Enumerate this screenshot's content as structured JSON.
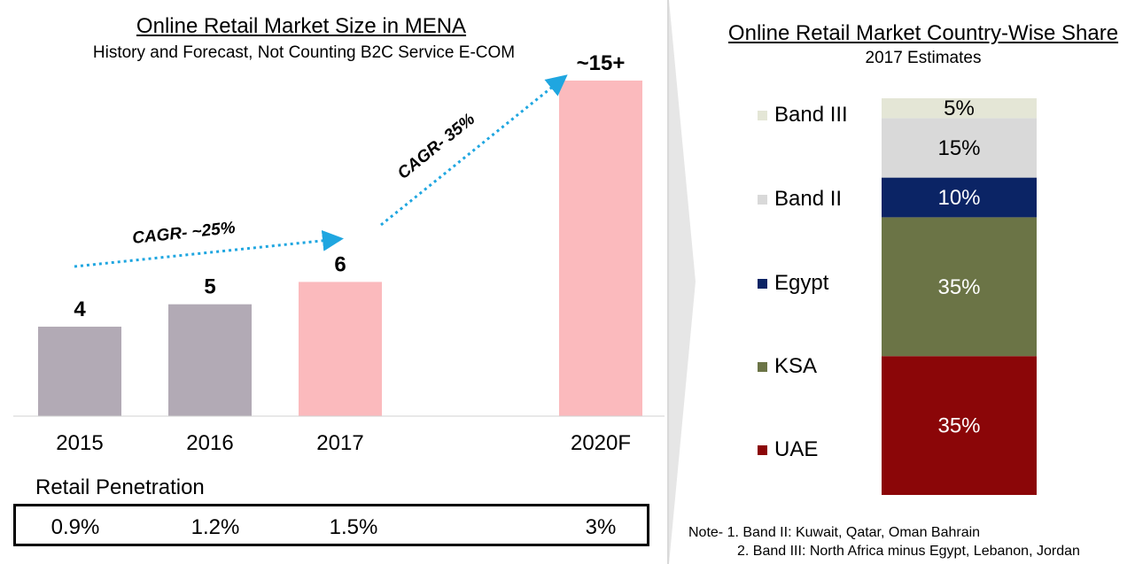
{
  "left_chart": {
    "title": "Online Retail Market Size in MENA",
    "subtitle": "History and Forecast, Not Counting B2C Service E-COM",
    "cagr1_label": "CAGR- ~25%",
    "cagr2_label": "CAGR- 35%",
    "penetration_title": "Retail Penetration",
    "penetration": [
      "0.9%",
      "1.2%",
      "1.5%",
      "3%"
    ]
  },
  "right_chart": {
    "title": "Online Retail Market Country-Wise Share",
    "subtitle": "2017 Estimates",
    "legend": [
      {
        "label": "Band III",
        "color": "#e4e6d6"
      },
      {
        "label": "Band II",
        "color": "#d9d9d9"
      },
      {
        "label": "Egypt",
        "color": "#0b2465"
      },
      {
        "label": "KSA",
        "color": "#6b7446"
      },
      {
        "label": "UAE",
        "color": "#8b0608"
      }
    ]
  },
  "notes": {
    "line1": "Note- 1. Band II: Kuwait, Qatar, Oman Bahrain",
    "line2": "2. Band III: North Africa minus Egypt, Lebanon, Jordan"
  },
  "chart_data": [
    {
      "type": "bar",
      "title": "Online Retail Market Size in MENA",
      "subtitle": "History and Forecast, Not Counting B2C Service E-COM",
      "categories": [
        "2015",
        "2016",
        "2017",
        "2020F"
      ],
      "values": [
        4,
        5,
        6,
        15
      ],
      "value_labels": [
        "4",
        "5",
        "6",
        "~15+"
      ],
      "colors": [
        "#b2aab5",
        "#b2aab5",
        "#fbbabd",
        "#fbbabd"
      ],
      "ylim": [
        0,
        15
      ],
      "grid": false,
      "annotations": [
        "CAGR- ~25%",
        "CAGR- 35%"
      ]
    },
    {
      "type": "bar",
      "stacked": true,
      "title": "Online Retail Market Country-Wise Share",
      "subtitle": "2017 Estimates",
      "categories": [
        "2017"
      ],
      "series": [
        {
          "name": "UAE",
          "values": [
            35
          ],
          "label": "35%",
          "color": "#8b0608",
          "text_color": "#ffffff"
        },
        {
          "name": "KSA",
          "values": [
            35
          ],
          "label": "35%",
          "color": "#6b7446",
          "text_color": "#ffffff"
        },
        {
          "name": "Egypt",
          "values": [
            10
          ],
          "label": "10%",
          "color": "#0b2465",
          "text_color": "#ffffff"
        },
        {
          "name": "Band II",
          "values": [
            15
          ],
          "label": "15%",
          "color": "#d9d9d9",
          "text_color": "#000000"
        },
        {
          "name": "Band III",
          "values": [
            5
          ],
          "label": "5%",
          "color": "#e4e6d6",
          "text_color": "#000000"
        }
      ],
      "ylim": [
        0,
        100
      ],
      "legend": "left"
    }
  ]
}
